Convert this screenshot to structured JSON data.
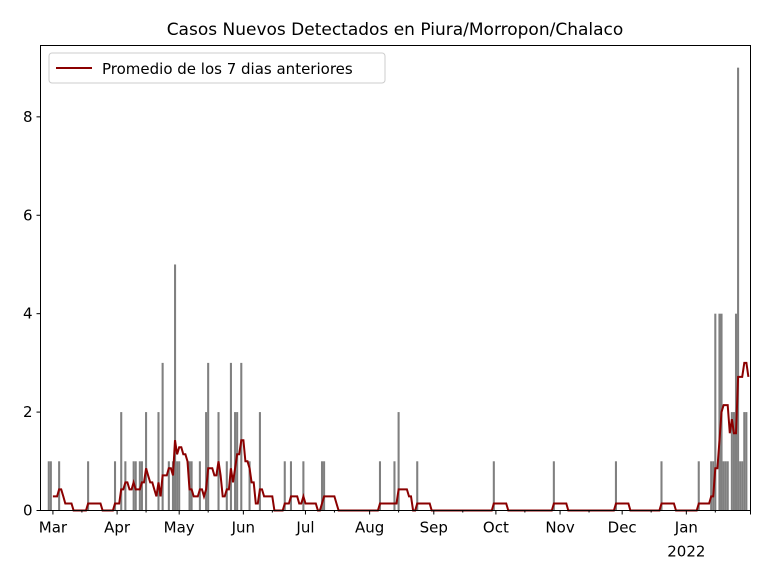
{
  "chart_data": {
    "type": "bar",
    "title": "Casos Nuevos Detectados en Piura/Morropon/Chalaco",
    "xlabel": "",
    "ylabel": "",
    "xlim": [
      "2021-02-23",
      "2022-02-01"
    ],
    "ylim": [
      0,
      9.45
    ],
    "y_ticks": [
      0,
      2,
      4,
      6,
      8
    ],
    "x_ticks": [
      {
        "date": "2021-03-01",
        "label": "Mar"
      },
      {
        "date": "2021-04-01",
        "label": "Apr"
      },
      {
        "date": "2021-05-01",
        "label": "May"
      },
      {
        "date": "2021-06-01",
        "label": "Jun"
      },
      {
        "date": "2021-07-01",
        "label": "Jul"
      },
      {
        "date": "2021-08-01",
        "label": "Aug"
      },
      {
        "date": "2021-09-01",
        "label": "Sep"
      },
      {
        "date": "2021-10-01",
        "label": "Oct"
      },
      {
        "date": "2021-11-01",
        "label": "Nov"
      },
      {
        "date": "2021-12-01",
        "label": "Dec"
      },
      {
        "date": "2022-01-01",
        "label": "Jan",
        "sublabel": "2022"
      }
    ],
    "legend": {
      "placement": "top-left",
      "entries": [
        "Promedio de los 7 dias anteriores"
      ]
    },
    "bar_color": "#808080",
    "line_color": "#8b0000",
    "line_window_days": 7,
    "daily_counts": {
      "2021-02-27": 1,
      "2021-02-28": 1,
      "2021-03-04": 1,
      "2021-03-18": 1,
      "2021-03-31": 1,
      "2021-04-03": 2,
      "2021-04-05": 1,
      "2021-04-09": 1,
      "2021-04-10": 1,
      "2021-04-12": 1,
      "2021-04-13": 1,
      "2021-04-15": 2,
      "2021-04-21": 2,
      "2021-04-23": 3,
      "2021-04-26": 1,
      "2021-04-28": 1,
      "2021-04-29": 5,
      "2021-04-30": 1,
      "2021-05-01": 1,
      "2021-05-06": 1,
      "2021-05-07": 1,
      "2021-05-11": 1,
      "2021-05-14": 2,
      "2021-05-15": 3,
      "2021-05-20": 2,
      "2021-05-24": 1,
      "2021-05-26": 3,
      "2021-05-28": 2,
      "2021-05-29": 2,
      "2021-05-31": 3,
      "2021-06-04": 1,
      "2021-06-09": 2,
      "2021-06-21": 1,
      "2021-06-24": 1,
      "2021-06-30": 1,
      "2021-07-09": 1,
      "2021-07-10": 1,
      "2021-08-06": 1,
      "2021-08-13": 1,
      "2021-08-15": 2,
      "2021-08-24": 1,
      "2021-09-30": 1,
      "2021-10-29": 1,
      "2021-11-28": 1,
      "2021-12-20": 1,
      "2022-01-07": 1,
      "2022-01-13": 1,
      "2022-01-14": 1,
      "2022-01-15": 4,
      "2022-01-17": 4,
      "2022-01-18": 4,
      "2022-01-19": 1,
      "2022-01-20": 1,
      "2022-01-21": 1,
      "2022-01-23": 2,
      "2022-01-24": 2,
      "2022-01-25": 4,
      "2022-01-26": 9,
      "2022-01-27": 1,
      "2022-01-28": 1,
      "2022-01-29": 2,
      "2022-01-30": 2
    }
  }
}
